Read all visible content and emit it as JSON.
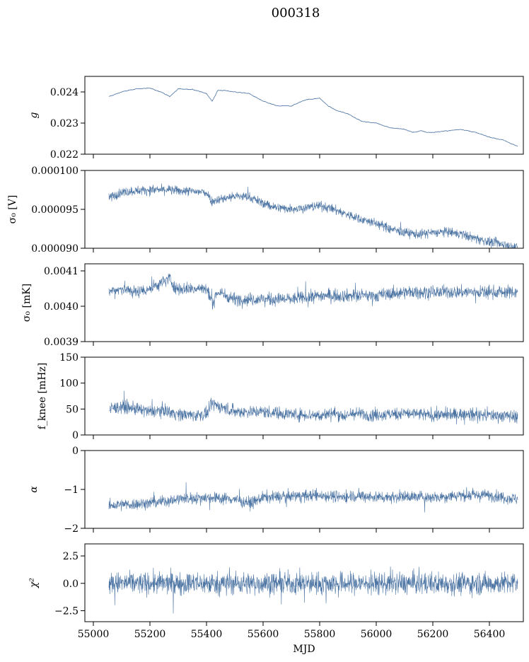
{
  "title": "000318",
  "series_color": "#4c74a3",
  "chart_data": [
    {
      "type": "line",
      "ylabel": "g",
      "ylim": [
        0.022,
        0.0245
      ],
      "yticks": [
        0.022,
        0.023,
        0.024
      ],
      "ytick_labels": [
        "0.022",
        "0.023",
        "0.024"
      ],
      "xlim": [
        54970,
        56520
      ],
      "x": [
        55055,
        55100,
        55150,
        55200,
        55240,
        55270,
        55300,
        55350,
        55400,
        55420,
        55440,
        55460,
        55500,
        55550,
        55600,
        55650,
        55700,
        55750,
        55800,
        55830,
        55860,
        55900,
        55950,
        56000,
        56050,
        56100,
        56130,
        56160,
        56180,
        56200,
        56250,
        56300,
        56350,
        56400,
        56450,
        56500
      ],
      "y": [
        0.02385,
        0.024,
        0.0241,
        0.02412,
        0.024,
        0.02385,
        0.0241,
        0.02408,
        0.02395,
        0.0237,
        0.02405,
        0.02405,
        0.024,
        0.02395,
        0.0237,
        0.02355,
        0.02355,
        0.02375,
        0.0238,
        0.02355,
        0.0234,
        0.0233,
        0.02305,
        0.023,
        0.02285,
        0.0228,
        0.0227,
        0.02275,
        0.0227,
        0.0227,
        0.02275,
        0.0228,
        0.0227,
        0.02255,
        0.02245,
        0.02225
      ],
      "noise": 2.5e-05
    },
    {
      "type": "line",
      "ylabel": "σ₀ [V]",
      "ylim": [
        9e-05,
        0.0001
      ],
      "yticks": [
        9e-05,
        9.5e-05,
        0.0001
      ],
      "ytick_labels": [
        "0.000090",
        "0.000095",
        "0.000100"
      ],
      "xlim": [
        54970,
        56520
      ],
      "x": [
        55055,
        55100,
        55150,
        55200,
        55250,
        55300,
        55350,
        55400,
        55420,
        55430,
        55500,
        55550,
        55600,
        55650,
        55700,
        55750,
        55800,
        55850,
        55900,
        55950,
        56000,
        56050,
        56100,
        56150,
        56200,
        56250,
        56300,
        56350,
        56400,
        56450,
        56500
      ],
      "y": [
        9.65e-05,
        9.72e-05,
        9.74e-05,
        9.75e-05,
        9.75e-05,
        9.74e-05,
        9.73e-05,
        9.72e-05,
        9.6e-05,
        9.62e-05,
        9.67e-05,
        9.66e-05,
        9.58e-05,
        9.52e-05,
        9.51e-05,
        9.52e-05,
        9.55e-05,
        9.5e-05,
        9.43e-05,
        9.37e-05,
        9.32e-05,
        9.25e-05,
        9.2e-05,
        9.18e-05,
        9.2e-05,
        9.21e-05,
        9.18e-05,
        9.13e-05,
        9.08e-05,
        9.05e-05,
        9.01e-05
      ],
      "noise": 6e-07
    },
    {
      "type": "line",
      "ylabel": "σ₀ [mK]",
      "ylim": [
        0.0039,
        0.00412
      ],
      "yticks": [
        0.0039,
        0.004,
        0.0041
      ],
      "ytick_labels": [
        "0.0039",
        "0.0040",
        "0.0041"
      ],
      "xlim": [
        54970,
        56520
      ],
      "x": [
        55055,
        55100,
        55150,
        55200,
        55250,
        55270,
        55290,
        55300,
        55350,
        55400,
        55420,
        55440,
        55500,
        55600,
        55700,
        55800,
        55900,
        56000,
        56100,
        56200,
        56300,
        56400,
        56500
      ],
      "y": [
        0.00404,
        0.00405,
        0.00404,
        0.00405,
        0.00407,
        0.00408,
        0.00405,
        0.00405,
        0.00405,
        0.00405,
        0.00401,
        0.00404,
        0.00402,
        0.00402,
        0.00402,
        0.00403,
        0.00403,
        0.00403,
        0.00404,
        0.00404,
        0.00404,
        0.00404,
        0.00404
      ],
      "noise": 1.8e-05
    },
    {
      "type": "line",
      "ylabel": "f_knee [mHz]",
      "ylim": [
        0,
        150
      ],
      "yticks": [
        0,
        50,
        100,
        150
      ],
      "ytick_labels": [
        "0",
        "50",
        "100",
        "150"
      ],
      "xlim": [
        54970,
        56520
      ],
      "x": [
        55055,
        55100,
        55150,
        55200,
        55250,
        55300,
        55350,
        55400,
        55420,
        55500,
        55600,
        55700,
        55800,
        55850,
        55900,
        55910,
        56000,
        56100,
        56200,
        56300,
        56400,
        56500
      ],
      "y": [
        50,
        55,
        50,
        45,
        48,
        40,
        38,
        40,
        60,
        45,
        45,
        40,
        38,
        42,
        35,
        42,
        38,
        42,
        38,
        40,
        38,
        36
      ],
      "noise": 12
    },
    {
      "type": "line",
      "ylabel": "α",
      "ylim": [
        -2,
        0
      ],
      "yticks": [
        -2,
        -1,
        0
      ],
      "ytick_labels": [
        "−2",
        "−1",
        "0"
      ],
      "xlim": [
        54970,
        56520
      ],
      "x": [
        55055,
        55100,
        55200,
        55300,
        55400,
        55500,
        55560,
        55600,
        55700,
        55800,
        55900,
        55910,
        56000,
        56100,
        56200,
        56300,
        56400,
        56500
      ],
      "y": [
        -1.42,
        -1.4,
        -1.35,
        -1.25,
        -1.2,
        -1.25,
        -1.35,
        -1.2,
        -1.18,
        -1.15,
        -1.2,
        -1.15,
        -1.2,
        -1.18,
        -1.2,
        -1.15,
        -1.15,
        -1.25
      ],
      "noise": 0.15
    },
    {
      "type": "line",
      "ylabel": "χ²",
      "xlabel": "MJD",
      "ylim": [
        -3.5,
        3.6
      ],
      "yticks": [
        -2.5,
        0,
        2.5
      ],
      "ytick_labels": [
        "−2.5",
        "0.0",
        "2.5"
      ],
      "xlim": [
        54970,
        56520
      ],
      "xticks": [
        55000,
        55200,
        55400,
        55600,
        55800,
        56000,
        56200,
        56400
      ],
      "xtick_labels": [
        "55000",
        "55200",
        "55400",
        "55600",
        "55800",
        "56000",
        "56200",
        "56400"
      ],
      "x": [
        55055,
        56500
      ],
      "y": [
        0,
        0
      ],
      "noise": 1.0
    }
  ]
}
